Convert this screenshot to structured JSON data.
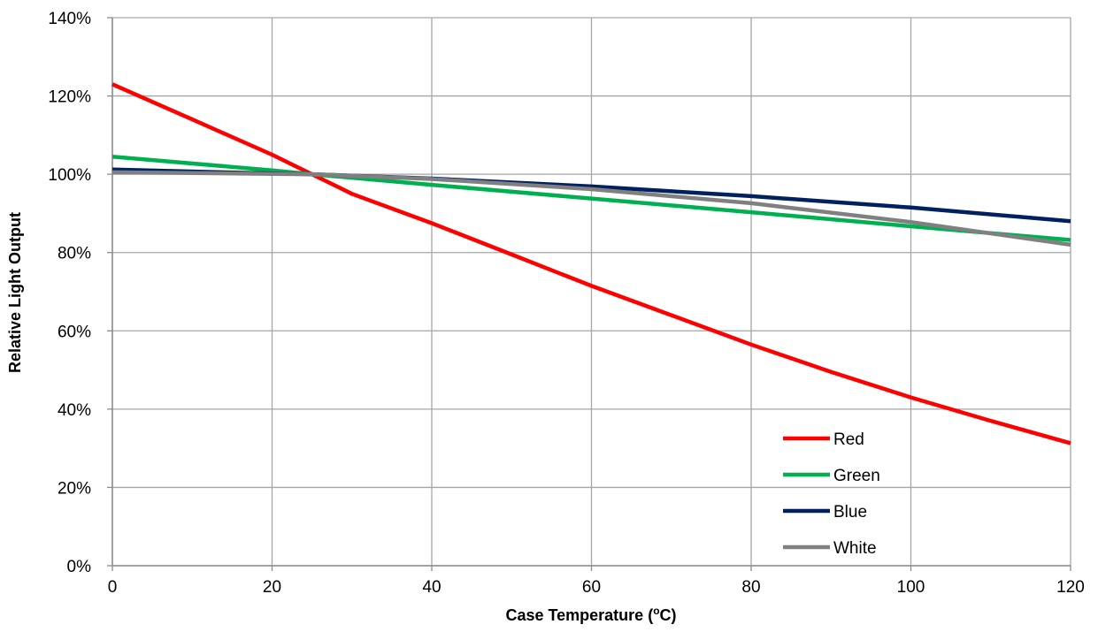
{
  "chart_data": {
    "type": "line",
    "xlabel_main": "Case Temperature (",
    "xlabel_sup": "o",
    "xlabel_end": "C)",
    "ylabel": "Relative Light Output",
    "xlim": [
      0,
      120
    ],
    "ylim": [
      0,
      140
    ],
    "x_ticks": [
      0,
      20,
      40,
      60,
      80,
      100,
      120
    ],
    "x_tick_labels": [
      "0",
      "20",
      "40",
      "60",
      "80",
      "100",
      "120"
    ],
    "y_ticks": [
      0,
      20,
      40,
      60,
      80,
      100,
      120,
      140
    ],
    "y_tick_labels": [
      "0%",
      "20%",
      "40%",
      "60%",
      "80%",
      "100%",
      "120%",
      "140%"
    ],
    "grid": true,
    "legend_position": "bottom-right",
    "series": [
      {
        "name": "Red",
        "color": "#ff0000",
        "x": [
          0,
          10,
          20,
          25,
          30,
          40,
          50,
          60,
          70,
          80,
          90,
          100,
          110,
          120
        ],
        "y": [
          123,
          114,
          105,
          100,
          95,
          87.5,
          79.5,
          71.5,
          64,
          56.5,
          49.5,
          43,
          37,
          31.3
        ]
      },
      {
        "name": "Green",
        "color": "#00b050",
        "x": [
          0,
          20,
          25,
          40,
          60,
          80,
          100,
          120
        ],
        "y": [
          104.5,
          101,
          100,
          97.3,
          93.8,
          90.3,
          86.7,
          83.2
        ]
      },
      {
        "name": "Blue",
        "color": "#002060",
        "x": [
          0,
          20,
          25,
          40,
          60,
          80,
          100,
          120
        ],
        "y": [
          101.2,
          100.2,
          100,
          98.9,
          96.9,
          94.4,
          91.5,
          88
        ]
      },
      {
        "name": "White",
        "color": "#808080",
        "x": [
          0,
          20,
          25,
          40,
          60,
          80,
          100,
          120
        ],
        "y": [
          100.5,
          100.1,
          100,
          98.8,
          96.2,
          92.6,
          87.8,
          82
        ]
      }
    ]
  }
}
